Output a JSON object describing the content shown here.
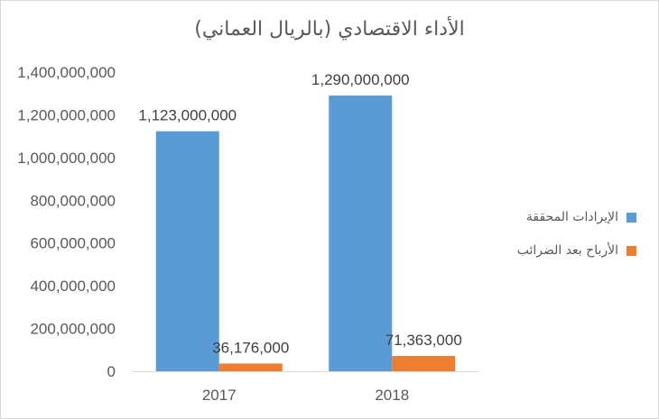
{
  "chart_data": {
    "type": "bar",
    "title": "الأداء الاقتصادي (بالريال العماني)",
    "categories": [
      "2017",
      "2018"
    ],
    "series": [
      {
        "name": "الإيرادات المحققة",
        "color": "#5b9bd5",
        "values": [
          1123000000,
          1290000000
        ],
        "labels": [
          "1,123,000,000",
          "1,290,000,000"
        ]
      },
      {
        "name": "الأرباح بعد الضرائب",
        "color": "#ed7d31",
        "values": [
          36176000,
          71363000
        ],
        "labels": [
          "36,176,000",
          "71,363,000"
        ]
      }
    ],
    "ylim": [
      0,
      1400000000
    ],
    "y_ticks": [
      0,
      200000000,
      400000000,
      600000000,
      800000000,
      1000000000,
      1200000000,
      1400000000
    ],
    "y_tick_labels": [
      "0",
      "200,000,000",
      "400,000,000",
      "600,000,000",
      "800,000,000",
      "1,000,000,000",
      "1,200,000,000",
      "1,400,000,000"
    ],
    "grid": false,
    "legend_position": "right"
  }
}
